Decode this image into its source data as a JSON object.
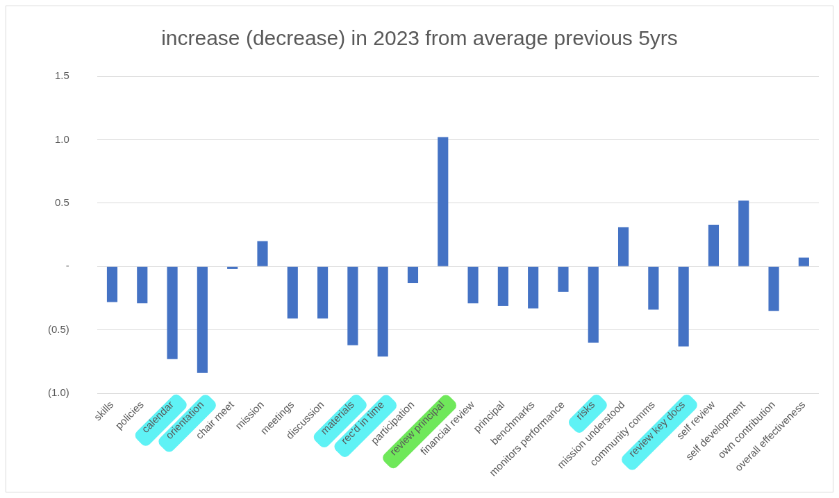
{
  "chart_data": {
    "type": "bar",
    "title": "increase (decrease) in 2023 from average previous 5yrs",
    "categories": [
      "skills",
      "policies",
      "calendar",
      "orientation",
      "chair meet",
      "mission",
      "meetings",
      "discussion",
      "materials",
      "rec'd in time",
      "participation",
      "review principal",
      "financial review",
      "principal",
      "benchmarks",
      "monitors performance",
      "risks",
      "mission understood",
      "community comms",
      "review key docs",
      "self review",
      "self development",
      "own contribution",
      "overall effectiveness"
    ],
    "values": [
      -0.28,
      -0.29,
      -0.73,
      -0.84,
      -0.02,
      0.2,
      -0.41,
      -0.41,
      -0.62,
      -0.71,
      -0.13,
      1.02,
      -0.29,
      -0.31,
      -0.33,
      -0.2,
      -0.6,
      0.31,
      -0.34,
      -0.63,
      0.33,
      0.52,
      -0.35,
      0.07
    ],
    "color": "#4472c4",
    "ylim": [
      -1.0,
      1.5
    ],
    "yticks": [
      {
        "value": -1.0,
        "label": "(1.0)"
      },
      {
        "value": -0.5,
        "label": "(0.5)"
      },
      {
        "value": 0,
        "label": "-"
      },
      {
        "value": 0.5,
        "label": "0.5"
      },
      {
        "value": 1.0,
        "label": "1.0"
      },
      {
        "value": 1.5,
        "label": "1.5"
      }
    ],
    "grid": "y"
  }
}
